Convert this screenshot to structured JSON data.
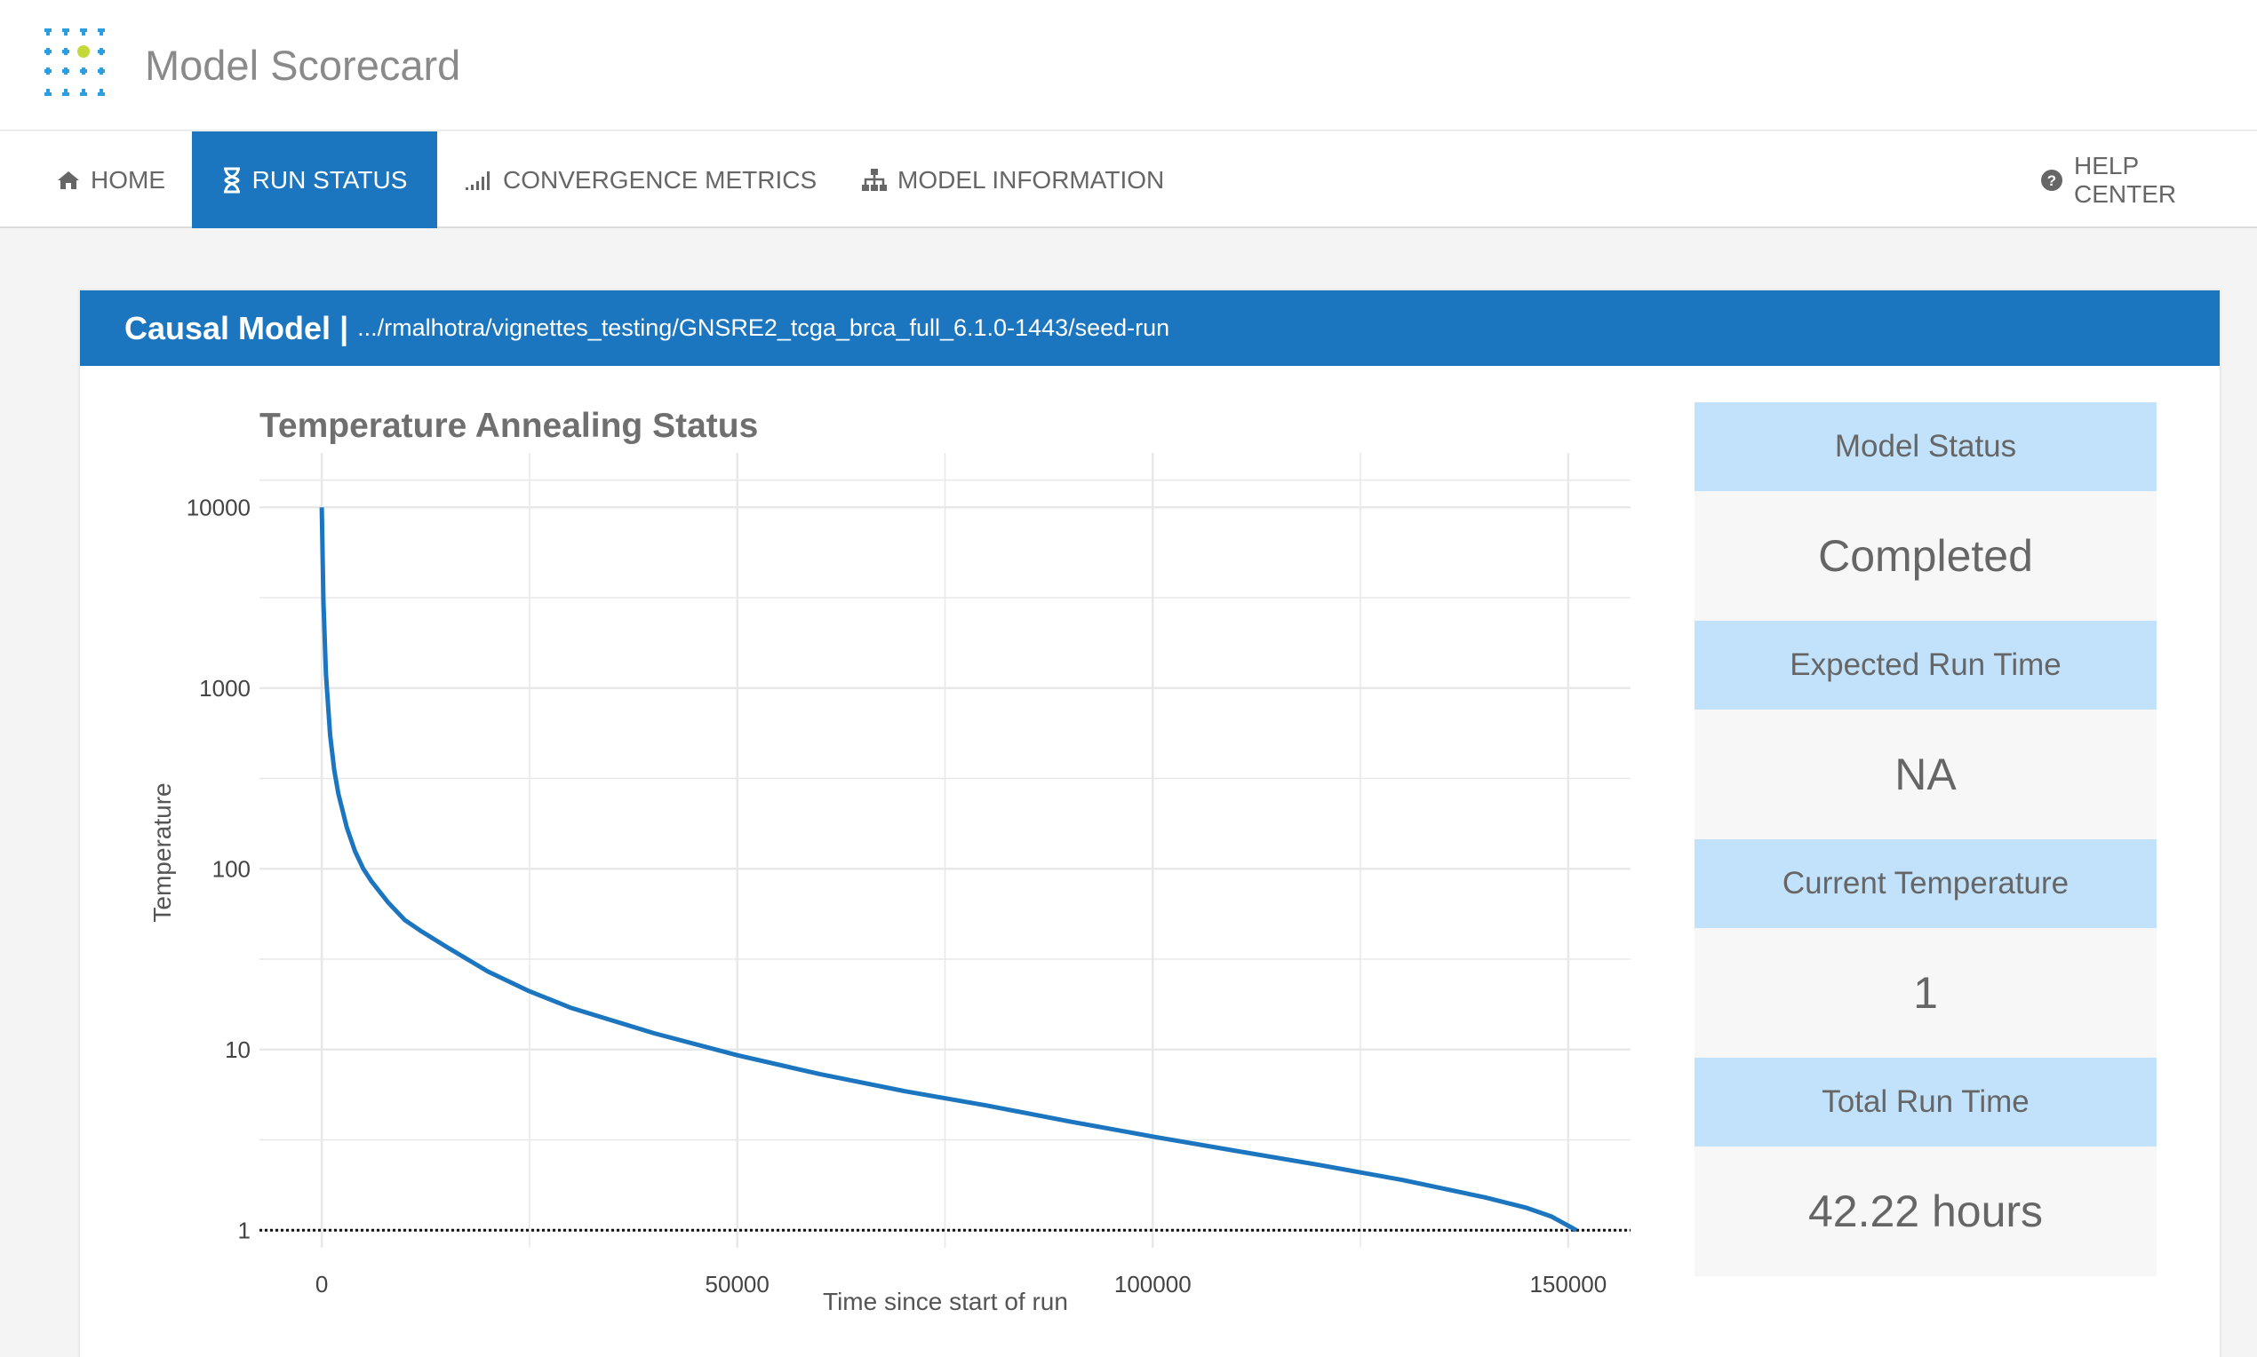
{
  "header": {
    "app_title": "Model Scorecard",
    "logo_icon": "grid-plus-logo"
  },
  "nav": {
    "home": {
      "label": "HOME",
      "icon": "home-icon"
    },
    "run_status": {
      "label": "RUN STATUS",
      "icon": "hourglass-icon",
      "active": true
    },
    "convergence": {
      "label": "CONVERGENCE METRICS",
      "icon": "signal-bars-icon"
    },
    "model_info": {
      "label": "MODEL INFORMATION",
      "icon": "sitemap-icon"
    },
    "help": {
      "label": "HELP CENTER",
      "icon": "question-circle-icon"
    }
  },
  "panel": {
    "title": "Causal Model",
    "separator": "|",
    "path": ".../rmalhotra/vignettes_testing/GNSRE2_tcga_brca_full_6.1.0-1443/seed-run"
  },
  "chart_data": {
    "type": "line",
    "title": "Temperature Annealing Status",
    "xlabel": "Time since start of run",
    "ylabel": "Temperature",
    "y_scale": "log",
    "xlim": [
      -7500,
      157500
    ],
    "ylim": [
      0.8,
      20000
    ],
    "x_ticks": [
      0,
      50000,
      100000,
      150000
    ],
    "x_tick_labels": [
      "0",
      "50000",
      "100000",
      "150000"
    ],
    "y_ticks": [
      1,
      10,
      100,
      1000,
      10000
    ],
    "y_tick_labels": [
      "1",
      "10",
      "100",
      "1000",
      "10000"
    ],
    "grid": true,
    "reference_line": {
      "y": 1,
      "style": "dotted"
    },
    "series": [
      {
        "color": "#1b75bf",
        "x": [
          0,
          200,
          500,
          1000,
          1500,
          2000,
          3000,
          4000,
          5000,
          6000,
          8000,
          10000,
          12000,
          15000,
          20000,
          25000,
          30000,
          40000,
          50000,
          60000,
          70000,
          80000,
          90000,
          100000,
          110000,
          120000,
          130000,
          140000,
          145000,
          148000,
          151000
        ],
        "y": [
          10000,
          3000,
          1200,
          550,
          350,
          260,
          170,
          125,
          100,
          85,
          65,
          52,
          45,
          37,
          27,
          21,
          17,
          12.3,
          9.3,
          7.3,
          5.9,
          4.9,
          4.0,
          3.3,
          2.75,
          2.3,
          1.9,
          1.52,
          1.33,
          1.19,
          1.0
        ]
      }
    ],
    "colors": {
      "line": "#1b75bf",
      "grid": "#e8e8e8",
      "axis_text": "#444444"
    }
  },
  "status": [
    {
      "label": "Model Status",
      "value": "Completed"
    },
    {
      "label": "Expected Run Time",
      "value": "NA"
    },
    {
      "label": "Current Temperature",
      "value": "1"
    },
    {
      "label": "Total Run Time",
      "value": "42.22 hours"
    }
  ],
  "colors": {
    "primary": "#1b75bf",
    "status_header": "#c2e2fb",
    "logo_green": "#c5d83a"
  }
}
